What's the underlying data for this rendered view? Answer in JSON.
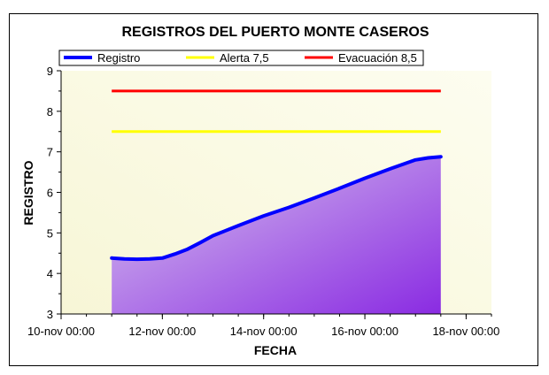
{
  "chart_data": {
    "type": "area",
    "title": "REGISTROS DEL PUERTO MONTE CASEROS",
    "xlabel": "FECHA",
    "ylabel": "REGISTRO",
    "ylim": [
      3,
      9
    ],
    "yticks": [
      "3",
      "4",
      "5",
      "6",
      "7",
      "8",
      "9"
    ],
    "xlim_days": [
      10,
      18.5
    ],
    "xticks": [
      {
        "day": 10,
        "label": "10-nov 00:00"
      },
      {
        "day": 12,
        "label": "12-nov 00:00"
      },
      {
        "day": 14,
        "label": "14-nov 00:00"
      },
      {
        "day": 16,
        "label": "16-nov 00:00"
      },
      {
        "day": 18,
        "label": "18-nov 00:00"
      }
    ],
    "legend_position": "top",
    "grid": false,
    "series": [
      {
        "name": "Registro",
        "color": "#0000ff",
        "x_days": [
          11.0,
          11.25,
          11.5,
          11.75,
          12.0,
          12.25,
          12.5,
          12.75,
          13.0,
          13.5,
          14.0,
          14.5,
          15.0,
          15.5,
          16.0,
          16.5,
          17.0,
          17.25,
          17.5
        ],
        "values": [
          4.38,
          4.36,
          4.35,
          4.36,
          4.38,
          4.48,
          4.6,
          4.76,
          4.93,
          5.18,
          5.42,
          5.63,
          5.86,
          6.1,
          6.35,
          6.58,
          6.8,
          6.85,
          6.88
        ]
      },
      {
        "name": "Alerta 7,5",
        "color": "#ffff00",
        "x_days": [
          11.0,
          17.5
        ],
        "values": [
          7.5,
          7.5
        ]
      },
      {
        "name": "Evacuación 8,5",
        "color": "#ff0000",
        "x_days": [
          11.0,
          17.5
        ],
        "values": [
          8.5,
          8.5
        ]
      }
    ]
  }
}
